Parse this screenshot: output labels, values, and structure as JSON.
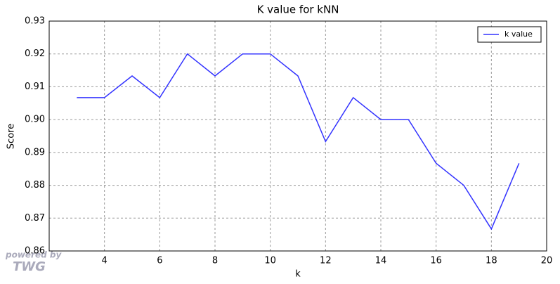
{
  "chart_data": {
    "type": "line",
    "title": "K value for kNN",
    "x_label": "k",
    "y_label": "Score",
    "x": [
      3,
      4,
      5,
      6,
      7,
      8,
      9,
      10,
      11,
      12,
      13,
      14,
      15,
      16,
      17,
      18,
      19
    ],
    "series": [
      {
        "name": "k value",
        "color": "#3333ff",
        "values": [
          0.9067,
          0.9067,
          0.9133,
          0.9067,
          0.92,
          0.9133,
          0.92,
          0.92,
          0.9133,
          0.8933,
          0.9067,
          0.9,
          0.9,
          0.8867,
          0.88,
          0.8667,
          0.8867
        ]
      }
    ],
    "xlim": [
      2,
      20
    ],
    "xticks": [
      4,
      6,
      8,
      10,
      12,
      14,
      16,
      18,
      20
    ],
    "ylim": [
      0.86,
      0.93
    ],
    "yticks": [
      0.86,
      0.87,
      0.88,
      0.89,
      {
        "value": 0.9,
        "label": "0.90"
      },
      0.91,
      0.92,
      0.93
    ],
    "grid": true,
    "legend": "upper right",
    "watermark": [
      "powered by",
      "TWG"
    ]
  }
}
